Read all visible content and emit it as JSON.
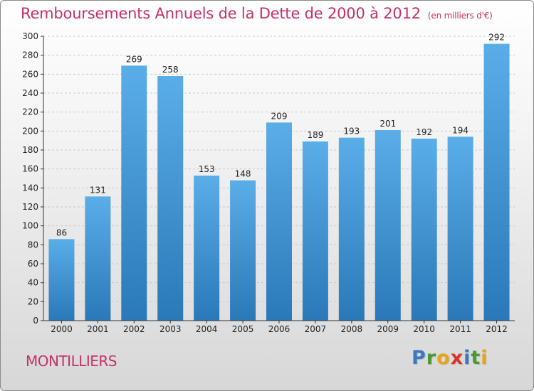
{
  "header": {
    "title": "Remboursements Annuels de la Dette de 2000 à 2012",
    "units": "(en milliers d'€)"
  },
  "footer": {
    "city": "MONTILLIERS",
    "logo_letters": [
      {
        "char": "P",
        "color": "#3a78c2"
      },
      {
        "char": "r",
        "color": "#4a9a2c"
      },
      {
        "char": "o",
        "color": "#e8a317"
      },
      {
        "char": "x",
        "color": "#d8342a"
      },
      {
        "char": "i",
        "color": "#3a78c2"
      },
      {
        "char": "t",
        "color": "#4a9a2c"
      },
      {
        "char": "i",
        "color": "#e8a317"
      }
    ]
  },
  "chart_data": {
    "type": "bar",
    "categories": [
      "2000",
      "2001",
      "2002",
      "2003",
      "2004",
      "2005",
      "2006",
      "2007",
      "2008",
      "2009",
      "2010",
      "2011",
      "2012"
    ],
    "values": [
      86,
      131,
      269,
      258,
      153,
      148,
      209,
      189,
      193,
      201,
      192,
      194,
      292
    ],
    "ylim": [
      0,
      300
    ],
    "yticks": [
      0,
      20,
      40,
      60,
      80,
      100,
      120,
      140,
      160,
      180,
      200,
      220,
      240,
      260,
      280,
      300
    ],
    "grid": true,
    "bar_color_top": "#5aaee8",
    "bar_color_bottom": "#2a78b8"
  }
}
